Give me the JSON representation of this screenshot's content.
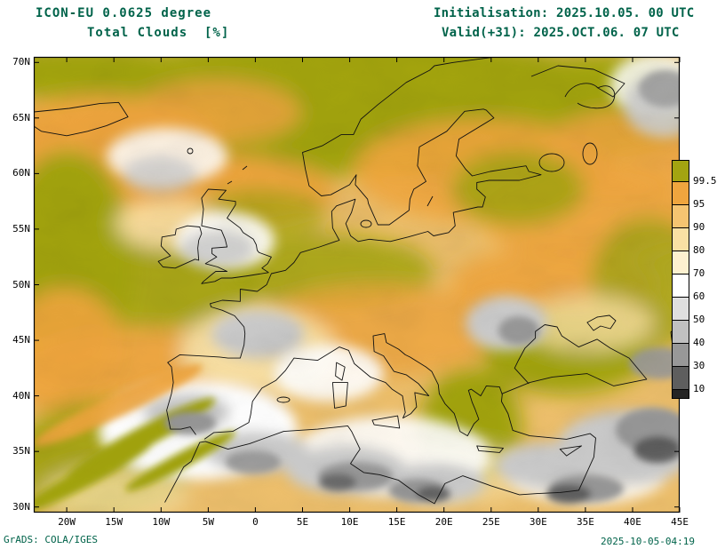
{
  "header": {
    "model": "ICON-EU 0.0625 degree",
    "parameter": "Total Clouds  [%]",
    "initialisation": "Initialisation: 2025.10.05. 00 UTC",
    "valid": "Valid(+31): 2025.OCT.06. 07 UTC"
  },
  "map": {
    "lat_labels": [
      "70N",
      "65N",
      "60N",
      "55N",
      "50N",
      "45N",
      "40N",
      "35N",
      "30N"
    ],
    "lon_labels": [
      "20W",
      "15W",
      "10W",
      "5W",
      "0",
      "5E",
      "10E",
      "15E",
      "20E",
      "25E",
      "30E",
      "35E",
      "40E",
      "45E"
    ]
  },
  "colorbar": {
    "levels": [
      "99.5",
      "95",
      "90",
      "80",
      "70",
      "60",
      "50",
      "40",
      "30",
      "10"
    ],
    "colors": [
      "#a3a411",
      "#efa53e",
      "#f5c471",
      "#f9e0a4",
      "#fdf1d0",
      "#ffffff",
      "#dfdfdf",
      "#c0c0c0",
      "#989898",
      "#5e5e5e",
      "#242424"
    ]
  },
  "footer": {
    "credit": "GrADS: COLA/IGES",
    "generated": "2025-10-05-04:19"
  },
  "colors": {
    "header_text": "#00634a",
    "axis_text": "#000000",
    "overcast_olive": "#a3a411",
    "high_cloud_orange": "#efa53e",
    "mid_cloud_cream": "#f9e0a4",
    "low_cloud_gray": "#989898"
  },
  "chart_data": {
    "type": "heatmap",
    "title": "Total Clouds [%]",
    "model": "ICON-EU 0.0625 degree",
    "init_time": "2025.10.05. 00 UTC",
    "valid_time": "2025.OCT.06. 07 UTC",
    "forecast_hour": 31,
    "x_ticks": [
      "20W",
      "15W",
      "10W",
      "5W",
      "0",
      "5E",
      "10E",
      "15E",
      "20E",
      "25E",
      "30E",
      "35E",
      "40E",
      "45E"
    ],
    "y_ticks": [
      "70N",
      "65N",
      "60N",
      "55N",
      "50N",
      "45N",
      "40N",
      "35N",
      "30N"
    ],
    "colorbar_levels_percent": [
      99.5,
      95,
      90,
      80,
      70,
      60,
      50,
      40,
      30,
      10
    ],
    "colorbar_colors": [
      "#a3a411",
      "#efa53e",
      "#f5c471",
      "#f9e0a4",
      "#fdf1d0",
      "#ffffff",
      "#dfdfdf",
      "#c0c0c0",
      "#989898",
      "#5e5e5e",
      "#242424"
    ],
    "legend_position": "right",
    "grid": false
  }
}
